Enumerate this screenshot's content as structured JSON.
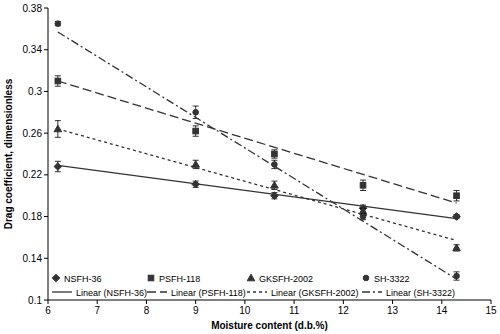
{
  "chart_data": {
    "type": "scatter",
    "x_label": "Moisture content (d.b.%)",
    "y_label": "Drag coefficient, dimensionless",
    "xlim": [
      6,
      15
    ],
    "xticks": [
      6,
      7,
      8,
      9,
      10,
      11,
      12,
      13,
      14,
      15
    ],
    "ylim": [
      0.1,
      0.38
    ],
    "yticks": [
      0.1,
      0.14,
      0.18,
      0.22,
      0.26,
      0.3,
      0.34,
      0.38
    ],
    "grid": false,
    "legend": "lower left",
    "series": [
      {
        "name": "NSFH-36",
        "type": "scatter",
        "marker": "diamond",
        "color": "#333333",
        "x": [
          6.2,
          9,
          10.6,
          12.4,
          14.3
        ],
        "values": [
          0.228,
          0.211,
          0.2,
          0.188,
          0.18
        ],
        "errors": [
          0.005,
          0.003,
          0.003,
          0.003,
          0.002
        ]
      },
      {
        "name": "PSFH-118",
        "type": "scatter",
        "marker": "square",
        "color": "#333333",
        "x": [
          6.2,
          9,
          10.6,
          12.4,
          14.3
        ],
        "values": [
          0.31,
          0.262,
          0.24,
          0.21,
          0.2
        ],
        "errors": [
          0.005,
          0.005,
          0.004,
          0.005,
          0.005
        ]
      },
      {
        "name": "GKSFH-2002",
        "type": "scatter",
        "marker": "triangle",
        "color": "#333333",
        "x": [
          6.2,
          9,
          10.6,
          12.4,
          14.3
        ],
        "values": [
          0.264,
          0.23,
          0.21,
          0.185,
          0.15
        ],
        "errors": [
          0.008,
          0.004,
          0.004,
          0.003,
          0.003
        ]
      },
      {
        "name": "SH-3322",
        "type": "scatter",
        "marker": "circle",
        "color": "#333333",
        "x": [
          6.2,
          9,
          10.6,
          12.4,
          14.3
        ],
        "values": [
          0.365,
          0.28,
          0.23,
          0.18,
          0.123
        ],
        "errors": [
          0.002,
          0.006,
          0.004,
          0.003,
          0.004
        ]
      },
      {
        "name": "Linear (NSFH-36)",
        "type": "line",
        "line_style": "solid",
        "color": "#333333",
        "x": [
          6.2,
          14.3
        ],
        "values": [
          0.229,
          0.178
        ]
      },
      {
        "name": "Linear (PSFH-118)",
        "type": "line",
        "line_style": "dashed",
        "color": "#333333",
        "x": [
          6.2,
          14.3
        ],
        "values": [
          0.31,
          0.193
        ]
      },
      {
        "name": "Linear (GKSFH-2002)",
        "type": "line",
        "line_style": "dotted",
        "color": "#333333",
        "x": [
          6.2,
          14.3
        ],
        "values": [
          0.264,
          0.157
        ]
      },
      {
        "name": "Linear (SH-3322)",
        "type": "line",
        "line_style": "dashdot",
        "color": "#333333",
        "x": [
          6.2,
          14.3
        ],
        "values": [
          0.357,
          0.12
        ]
      }
    ]
  }
}
